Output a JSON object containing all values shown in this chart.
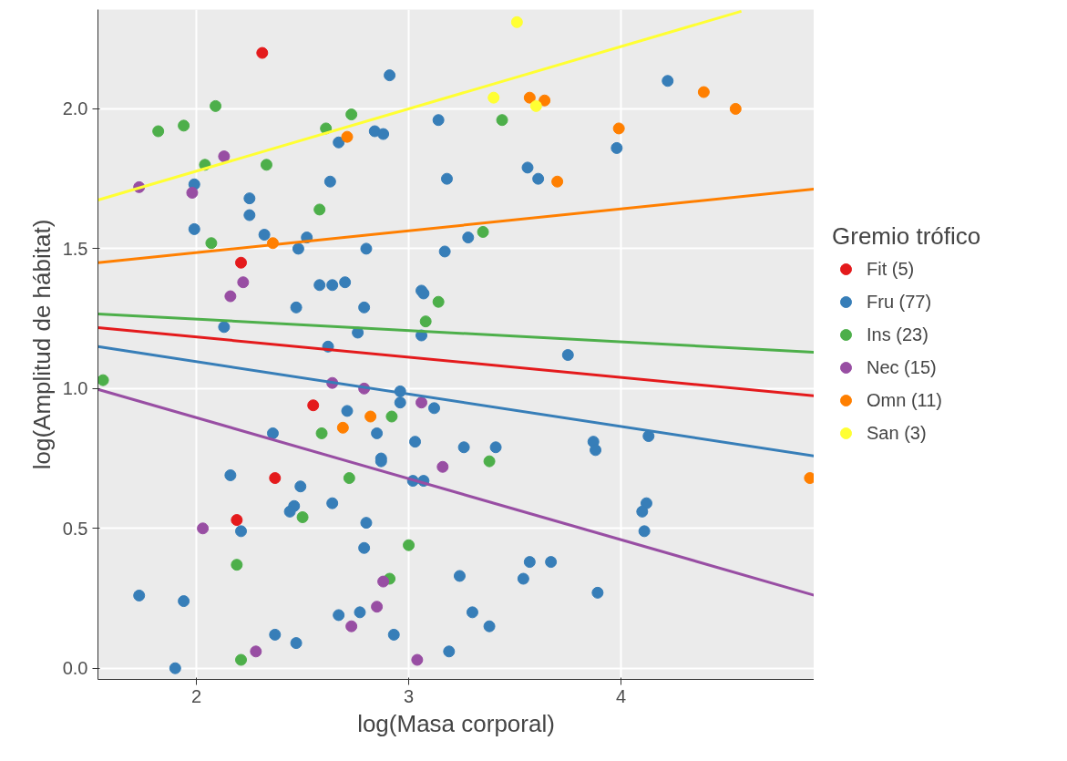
{
  "chart_data": {
    "type": "scatter",
    "xlabel": "log(Masa corporal)",
    "ylabel": "log(Amplitud de hábitat)",
    "legend_title": "Gremio trófico",
    "xlim": [
      1.536,
      4.91
    ],
    "ylim": [
      -0.04,
      2.355
    ],
    "xticks": [
      2,
      3,
      4
    ],
    "yticks": [
      {
        "value": 0,
        "label": "0.0"
      },
      {
        "value": 0.5,
        "label": "0.5"
      },
      {
        "value": 1,
        "label": "1.0"
      },
      {
        "value": 1.5,
        "label": "1.5"
      },
      {
        "value": 2,
        "label": "2.0"
      }
    ],
    "grid": true,
    "legend": "right",
    "marker": "circle",
    "series": [
      {
        "name": "Fit (5)",
        "color": "#e41a1c",
        "x": [
          2.31,
          2.21,
          2.55,
          2.37,
          2.19
        ],
        "values": [
          2.2,
          1.45,
          0.94,
          0.68,
          0.53
        ]
      },
      {
        "name": "Fru (77)",
        "color": "#377eb8",
        "x": [
          2.91,
          2.67,
          2.84,
          2.88,
          3.14,
          1.99,
          2.63,
          3.18,
          2.25,
          2.25,
          1.99,
          2.32,
          2.52,
          4.22,
          3.98,
          3.56,
          3.61,
          3.28,
          2.48,
          2.8,
          3.17,
          2.58,
          2.64,
          2.7,
          3.06,
          3.07,
          2.47,
          2.79,
          2.13,
          2.76,
          3.06,
          2.62,
          2.96,
          2.96,
          3.12,
          2.71,
          2.36,
          2.85,
          3.03,
          2.87,
          2.87,
          3.75,
          4.13,
          3.26,
          3.41,
          3.87,
          3.88,
          2.16,
          3.02,
          3.07,
          2.49,
          2.64,
          2.46,
          2.44,
          2.8,
          2.21,
          2.79,
          1.73,
          1.94,
          2.77,
          2.67,
          2.37,
          2.93,
          2.47,
          3.19,
          1.9,
          4.12,
          4.1,
          4.11,
          3.24,
          3.57,
          3.54,
          3.67,
          3.89,
          3.3,
          3.38
        ],
        "values": [
          2.12,
          1.88,
          1.92,
          1.91,
          1.96,
          1.73,
          1.74,
          1.75,
          1.68,
          1.62,
          1.57,
          1.55,
          1.54,
          2.1,
          1.86,
          1.79,
          1.75,
          1.54,
          1.5,
          1.5,
          1.49,
          1.37,
          1.37,
          1.38,
          1.35,
          1.34,
          1.29,
          1.29,
          1.22,
          1.2,
          1.19,
          1.15,
          0.99,
          0.95,
          0.93,
          0.92,
          0.84,
          0.84,
          0.81,
          0.75,
          0.74,
          1.12,
          0.83,
          0.79,
          0.79,
          0.81,
          0.78,
          0.69,
          0.67,
          0.67,
          0.65,
          0.59,
          0.58,
          0.56,
          0.52,
          0.49,
          0.43,
          0.26,
          0.24,
          0.2,
          0.19,
          0.12,
          0.12,
          0.09,
          0.06,
          0.0,
          0.59,
          0.56,
          0.49,
          0.33,
          0.38,
          0.32,
          0.38,
          0.27,
          0.2,
          0.15
        ]
      },
      {
        "name": "Ins (23)",
        "color": "#4daf4a",
        "x": [
          2.09,
          1.82,
          1.94,
          2.73,
          2.61,
          2.04,
          2.33,
          2.58,
          3.44,
          3.35,
          2.07,
          3.14,
          3.08,
          1.56,
          2.92,
          2.59,
          3.38,
          2.72,
          2.5,
          3.0,
          2.19,
          2.91,
          2.21
        ],
        "values": [
          2.01,
          1.92,
          1.94,
          1.98,
          1.93,
          1.8,
          1.8,
          1.64,
          1.96,
          1.56,
          1.52,
          1.31,
          1.24,
          1.03,
          0.9,
          0.84,
          0.74,
          0.68,
          0.54,
          0.44,
          0.37,
          0.32,
          0.03
        ]
      },
      {
        "name": "Nec (15)",
        "color": "#984ea3",
        "x": [
          2.13,
          1.73,
          1.98,
          2.22,
          2.16,
          2.64,
          2.79,
          3.06,
          3.16,
          2.03,
          2.88,
          2.85,
          2.73,
          2.28,
          3.04
        ],
        "values": [
          1.83,
          1.72,
          1.7,
          1.38,
          1.33,
          1.02,
          1.0,
          0.95,
          0.72,
          0.5,
          0.31,
          0.22,
          0.15,
          0.06,
          0.03
        ]
      },
      {
        "name": "Omn (11)",
        "color": "#ff7f00",
        "x": [
          2.71,
          3.57,
          3.64,
          4.39,
          4.54,
          3.99,
          3.7,
          2.36,
          2.82,
          2.69,
          4.89
        ],
        "values": [
          1.9,
          2.04,
          2.03,
          2.06,
          2.0,
          1.93,
          1.74,
          1.52,
          0.9,
          0.86,
          0.68
        ]
      },
      {
        "name": "San (3)",
        "color": "#ffff33",
        "x": [
          3.51,
          3.4,
          3.6
        ],
        "values": [
          2.31,
          2.04,
          2.01
        ]
      },
      {
        "type": "line",
        "marker": "none",
        "color": "#ffff33",
        "x": [
          1.536,
          4.567
        ],
        "values": [
          1.674,
          2.349
        ]
      },
      {
        "type": "line",
        "marker": "none",
        "color": "#ff7f00",
        "x": [
          1.536,
          4.91
        ],
        "values": [
          1.45,
          1.713
        ]
      },
      {
        "type": "line",
        "marker": "none",
        "color": "#4daf4a",
        "x": [
          1.536,
          4.91
        ],
        "values": [
          1.267,
          1.13
        ]
      },
      {
        "type": "line",
        "marker": "none",
        "color": "#e41a1c",
        "x": [
          1.536,
          4.91
        ],
        "values": [
          1.218,
          0.974
        ]
      },
      {
        "type": "line",
        "marker": "none",
        "color": "#377eb8",
        "x": [
          1.536,
          4.91
        ],
        "values": [
          1.15,
          0.759
        ]
      },
      {
        "type": "line",
        "marker": "none",
        "color": "#984ea3",
        "x": [
          1.536,
          4.91
        ],
        "values": [
          0.997,
          0.261
        ]
      }
    ]
  }
}
